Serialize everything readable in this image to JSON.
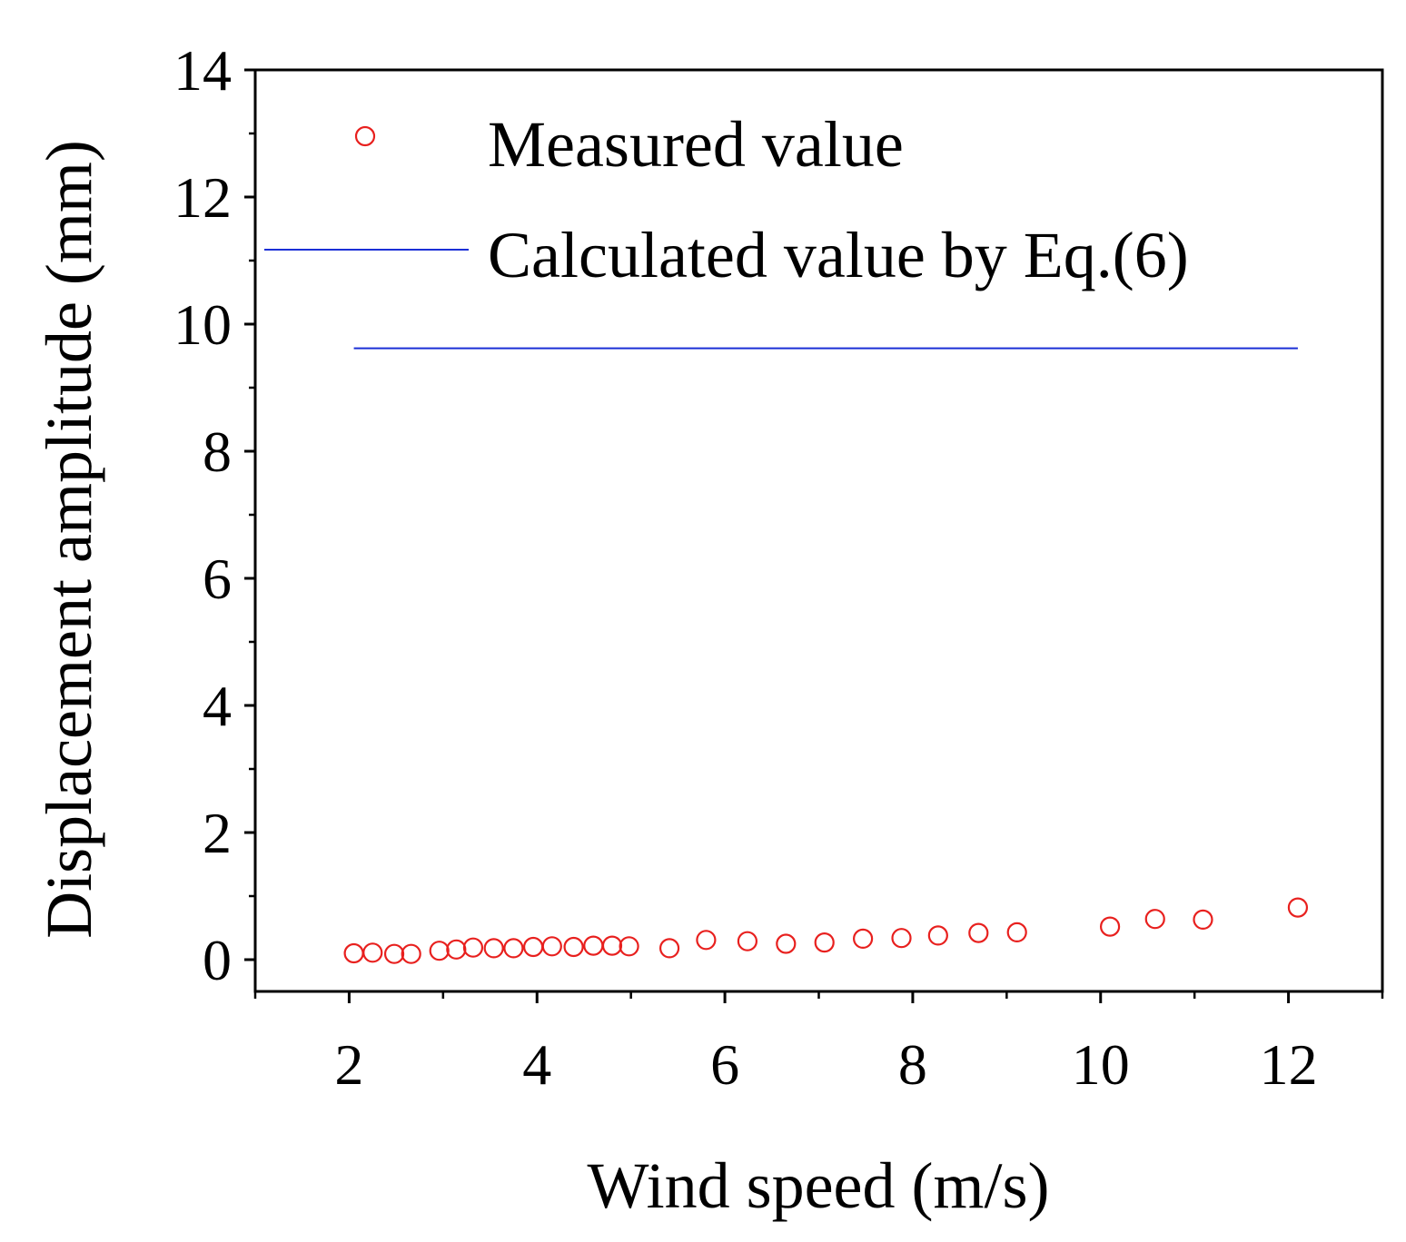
{
  "chart_data": {
    "type": "scatter",
    "title": "",
    "xlabel": "Wind speed (m/s)",
    "ylabel": "Displacement amplitude (mm)",
    "xlim": [
      1,
      13
    ],
    "ylim": [
      -0.5,
      14
    ],
    "xticks": [
      2,
      4,
      6,
      8,
      10,
      12
    ],
    "yticks": [
      0,
      2,
      4,
      6,
      8,
      10,
      12,
      14
    ],
    "grid": false,
    "legend_position": "top-left",
    "colors": {
      "measured": "#e8201e",
      "calculated": "#1b2fd6",
      "axis": "#000000"
    },
    "series": [
      {
        "name": "Measured value",
        "kind": "scatter",
        "marker": "open-circle",
        "x": [
          2.05,
          2.25,
          2.48,
          2.66,
          2.96,
          3.14,
          3.32,
          3.54,
          3.75,
          3.96,
          4.16,
          4.39,
          4.6,
          4.8,
          4.98,
          5.41,
          5.8,
          6.24,
          6.65,
          7.06,
          7.47,
          7.88,
          8.27,
          8.7,
          9.11,
          10.1,
          10.58,
          11.09,
          12.1
        ],
        "y": [
          0.1,
          0.11,
          0.09,
          0.09,
          0.14,
          0.16,
          0.19,
          0.18,
          0.18,
          0.2,
          0.21,
          0.2,
          0.22,
          0.22,
          0.21,
          0.18,
          0.31,
          0.29,
          0.25,
          0.27,
          0.33,
          0.34,
          0.38,
          0.42,
          0.43,
          0.52,
          0.64,
          0.63,
          0.82
        ]
      },
      {
        "name": "Calculated value by Eq.(6)",
        "kind": "line",
        "x": [
          2.05,
          12.1
        ],
        "y": [
          9.62,
          9.62
        ]
      }
    ]
  }
}
